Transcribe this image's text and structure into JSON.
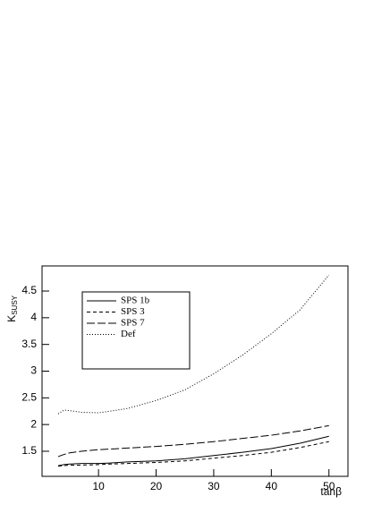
{
  "chart_data": {
    "type": "line",
    "xlabel": "tanβ",
    "ylabel": "K",
    "ylabel_subscript": "SUSY",
    "x": [
      3,
      4,
      5,
      7,
      10,
      12,
      15,
      20,
      25,
      30,
      35,
      40,
      45,
      50
    ],
    "series": [
      {
        "name": "SPS 1b",
        "color": "#000000",
        "style": "solid",
        "values": [
          1.23,
          1.25,
          1.26,
          1.27,
          1.27,
          1.28,
          1.3,
          1.32,
          1.36,
          1.42,
          1.48,
          1.55,
          1.65,
          1.78
        ]
      },
      {
        "name": "SPS 3",
        "color": "#000000",
        "style": "dashed",
        "values": [
          1.22,
          1.23,
          1.24,
          1.24,
          1.25,
          1.26,
          1.27,
          1.29,
          1.32,
          1.37,
          1.42,
          1.48,
          1.57,
          1.68
        ]
      },
      {
        "name": "SPS 7",
        "color": "#000000",
        "style": "longdash",
        "values": [
          1.4,
          1.44,
          1.47,
          1.5,
          1.53,
          1.54,
          1.56,
          1.59,
          1.63,
          1.68,
          1.74,
          1.8,
          1.88,
          1.98
        ]
      },
      {
        "name": "Def",
        "color": "#000000",
        "style": "dotted",
        "values": [
          2.2,
          2.27,
          2.26,
          2.23,
          2.22,
          2.25,
          2.3,
          2.45,
          2.65,
          2.95,
          3.3,
          3.7,
          4.15,
          4.8
        ]
      }
    ],
    "xlim": [
      0.2,
      53.3
    ],
    "xticks": [
      10,
      20,
      30,
      40,
      50
    ],
    "ylim": [
      1.03,
      4.97
    ],
    "yticks": [
      1.5,
      2,
      2.5,
      3,
      3.5,
      4,
      4.5
    ],
    "legend": "upper-left"
  }
}
